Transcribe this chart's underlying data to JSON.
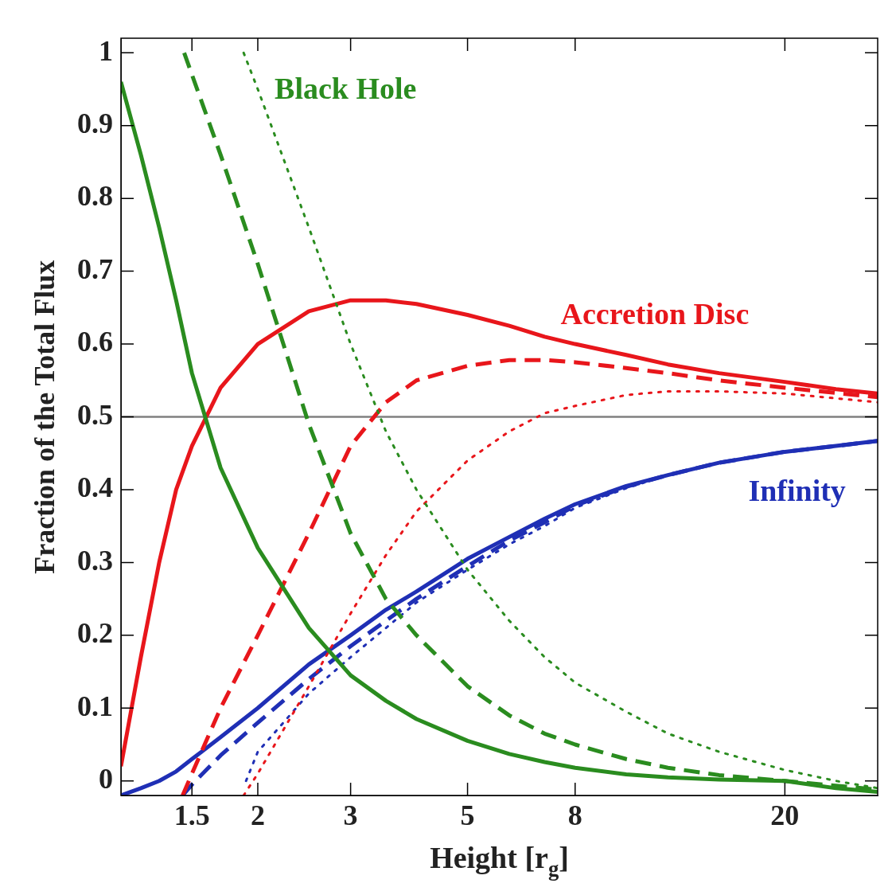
{
  "chart_data": {
    "type": "line",
    "xlabel": "Height [r$_{g}$]",
    "ylabel": "Fraction of the Total Flux",
    "log": "x",
    "xlim": [
      1.1,
      30
    ],
    "xticks": [
      1.5,
      2,
      3,
      5,
      8,
      20
    ],
    "ylim": [
      -0.02,
      1.02
    ],
    "yticks": [
      0,
      0.1,
      0.2,
      0.3,
      0.4,
      0.5,
      0.6,
      0.7,
      0.8,
      0.9,
      1
    ],
    "grid": false,
    "legend": false,
    "marker": "none",
    "ref_lines": [
      {
        "axis": "y",
        "value": 0.5,
        "color": "#808080"
      }
    ],
    "series": [
      {
        "name": "Black Hole",
        "color": "#2a8c1f",
        "line_style": "solid",
        "x": [
          1.1,
          1.2,
          1.3,
          1.4,
          1.5,
          1.7,
          2,
          2.5,
          3,
          3.5,
          4,
          5,
          6,
          7,
          8,
          10,
          12,
          15,
          20,
          25,
          30
        ],
        "values": [
          0.96,
          0.86,
          0.76,
          0.66,
          0.56,
          0.43,
          0.32,
          0.21,
          0.145,
          0.11,
          0.085,
          0.055,
          0.037,
          0.026,
          0.018,
          0.009,
          0.005,
          0.002,
          0,
          -0.01,
          -0.015
        ]
      },
      {
        "color": "#2a8c1f",
        "line_style": "dashed",
        "x": [
          1.45,
          1.5,
          1.7,
          2,
          2.5,
          3,
          3.5,
          4,
          5,
          6,
          7,
          8,
          10,
          12,
          15,
          20,
          30
        ],
        "values": [
          1.0,
          0.97,
          0.86,
          0.71,
          0.49,
          0.34,
          0.25,
          0.2,
          0.13,
          0.09,
          0.065,
          0.05,
          0.03,
          0.018,
          0.008,
          0,
          -0.012
        ]
      },
      {
        "color": "#2a8c1f",
        "line_style": "dotted",
        "x": [
          1.88,
          2,
          2.5,
          3,
          3.5,
          4,
          5,
          6,
          7,
          8,
          10,
          12,
          15,
          20,
          25,
          30
        ],
        "values": [
          1.0,
          0.95,
          0.76,
          0.6,
          0.48,
          0.4,
          0.29,
          0.22,
          0.17,
          0.135,
          0.095,
          0.065,
          0.04,
          0.015,
          0,
          -0.01
        ]
      },
      {
        "name": "Accretion Disc",
        "color": "#e8161b",
        "line_style": "solid",
        "x": [
          1.1,
          1.2,
          1.3,
          1.4,
          1.5,
          1.7,
          2,
          2.5,
          3,
          3.5,
          4,
          5,
          6,
          7,
          8,
          10,
          12,
          15,
          20,
          25,
          30
        ],
        "values": [
          0.02,
          0.17,
          0.3,
          0.4,
          0.46,
          0.54,
          0.6,
          0.645,
          0.66,
          0.66,
          0.655,
          0.64,
          0.625,
          0.61,
          0.6,
          0.585,
          0.572,
          0.56,
          0.548,
          0.538,
          0.532
        ]
      },
      {
        "color": "#e8161b",
        "line_style": "dashed",
        "x": [
          1.44,
          1.5,
          1.7,
          2,
          2.5,
          3,
          3.5,
          4,
          5,
          6,
          7,
          8,
          10,
          12,
          15,
          20,
          30
        ],
        "values": [
          -0.02,
          0.01,
          0.1,
          0.2,
          0.34,
          0.46,
          0.52,
          0.55,
          0.57,
          0.578,
          0.578,
          0.575,
          0.567,
          0.56,
          0.55,
          0.54,
          0.527
        ]
      },
      {
        "color": "#e8161b",
        "line_style": "dotted",
        "x": [
          1.88,
          2,
          2.5,
          3,
          3.5,
          4,
          5,
          6,
          7,
          8,
          10,
          12,
          15,
          20,
          30
        ],
        "values": [
          -0.02,
          0.01,
          0.13,
          0.23,
          0.31,
          0.37,
          0.44,
          0.48,
          0.505,
          0.515,
          0.53,
          0.535,
          0.535,
          0.532,
          0.52
        ]
      },
      {
        "name": "Infinity",
        "color": "#1f2fb5",
        "line_style": "solid",
        "x": [
          1.1,
          1.2,
          1.3,
          1.4,
          1.5,
          1.7,
          2,
          2.5,
          3,
          3.5,
          4,
          5,
          6,
          7,
          8,
          10,
          12,
          15,
          20,
          25,
          30
        ],
        "values": [
          -0.02,
          -0.01,
          0,
          0.013,
          0.03,
          0.06,
          0.1,
          0.16,
          0.2,
          0.235,
          0.26,
          0.305,
          0.335,
          0.36,
          0.38,
          0.405,
          0.42,
          0.437,
          0.452,
          0.46,
          0.467
        ]
      },
      {
        "color": "#1f2fb5",
        "line_style": "dashed",
        "x": [
          1.44,
          1.5,
          1.7,
          2,
          2.5,
          3,
          3.5,
          4,
          5,
          6,
          7,
          8,
          10,
          12,
          15,
          20,
          25,
          30
        ],
        "values": [
          -0.02,
          -0.005,
          0.035,
          0.08,
          0.14,
          0.185,
          0.22,
          0.25,
          0.295,
          0.33,
          0.355,
          0.378,
          0.404,
          0.42,
          0.437,
          0.452,
          0.46,
          0.467
        ]
      },
      {
        "color": "#1f2fb5",
        "line_style": "dotted",
        "x": [
          1.9,
          2,
          2.5,
          3,
          3.5,
          4,
          5,
          6,
          7,
          8,
          10,
          12,
          15,
          20,
          25,
          30
        ],
        "values": [
          0,
          0.04,
          0.12,
          0.17,
          0.21,
          0.245,
          0.29,
          0.325,
          0.35,
          0.375,
          0.402,
          0.42,
          0.437,
          0.452,
          0.46,
          0.467
        ]
      }
    ]
  }
}
